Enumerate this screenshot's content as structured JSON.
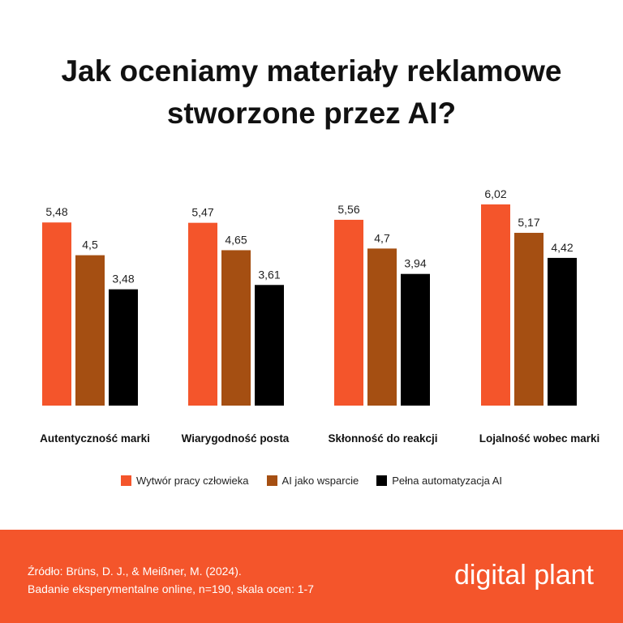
{
  "title": {
    "line1": "Jak oceniamy materiały reklamowe",
    "line2": "stworzone przez AI?"
  },
  "chart_data": {
    "type": "bar",
    "categories": [
      "Autentyczność marki",
      "Wiarygodność posta",
      "Skłonność do reakcji",
      "Lojalność wobec marki"
    ],
    "series": [
      {
        "name": "Wytwór pracy człowieka",
        "color": "#f4552b",
        "values": [
          5.48,
          5.47,
          5.56,
          6.02
        ],
        "labels": [
          "5,48",
          "5,47",
          "5,56",
          "6,02"
        ]
      },
      {
        "name": "AI jako wsparcie",
        "color": "#a54f12",
        "values": [
          4.5,
          4.65,
          4.7,
          5.17
        ],
        "labels": [
          "4,5",
          "4,65",
          "4,7",
          "5,17"
        ]
      },
      {
        "name": "Pełna automatyzacja AI",
        "color": "#000000",
        "values": [
          3.48,
          3.61,
          3.94,
          4.42
        ],
        "labels": [
          "3,48",
          "3,61",
          "3,94",
          "4,42"
        ]
      }
    ],
    "ylim": [
      0,
      6.02
    ],
    "grid": false,
    "legend_position": "bottom"
  },
  "footer": {
    "source_line1": "Źródło: Brüns, D. J., & Meißner, M. (2024).",
    "source_line2": "Badanie eksperymentalne online, n=190, skala ocen: 1-7",
    "brand": "digital plant"
  }
}
